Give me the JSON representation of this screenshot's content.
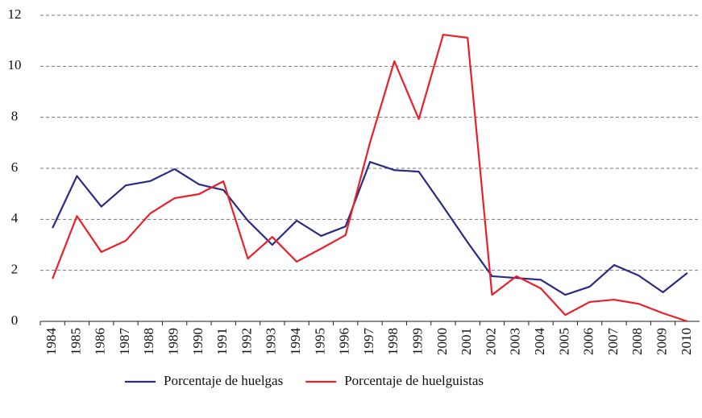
{
  "chart_data": {
    "type": "line",
    "categories": [
      "1984",
      "1985",
      "1986",
      "1987",
      "1988",
      "1989",
      "1990",
      "1991",
      "1992",
      "1993",
      "1994",
      "1995",
      "1996",
      "1997",
      "1998",
      "1999",
      "2000",
      "2001",
      "2002",
      "2003",
      "2004",
      "2005",
      "2006",
      "2007",
      "2008",
      "2009",
      "2010"
    ],
    "series": [
      {
        "name": "Porcentaje de huelgas",
        "color": "#2b2a86",
        "values": [
          3.66,
          5.7,
          4.5,
          5.33,
          5.5,
          5.97,
          5.37,
          5.15,
          3.95,
          3.0,
          3.95,
          3.35,
          3.72,
          6.25,
          5.93,
          5.87,
          4.5,
          3.1,
          1.77,
          1.7,
          1.63,
          1.04,
          1.36,
          2.21,
          1.8,
          1.14,
          1.9
        ]
      },
      {
        "name": "Porcentaje de huelguistas",
        "color": "#e8202a",
        "values": [
          1.67,
          4.13,
          2.72,
          3.16,
          4.23,
          4.83,
          4.99,
          5.49,
          2.46,
          3.31,
          2.34,
          2.85,
          3.38,
          7.0,
          10.2,
          7.93,
          11.24,
          11.12,
          1.04,
          1.77,
          1.29,
          0.25,
          0.76,
          0.85,
          0.69,
          0.32,
          0.0
        ]
      }
    ],
    "ylim": [
      0,
      12
    ],
    "yticks": [
      0,
      2,
      4,
      6,
      8,
      10,
      12
    ],
    "grid": true,
    "legend": "bottom"
  }
}
